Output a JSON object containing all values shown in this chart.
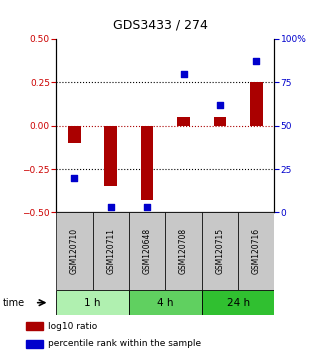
{
  "title": "GDS3433 / 274",
  "samples": [
    "GSM120710",
    "GSM120711",
    "GSM120648",
    "GSM120708",
    "GSM120715",
    "GSM120716"
  ],
  "log10_ratio": [
    -0.1,
    -0.35,
    -0.43,
    0.05,
    0.05,
    0.25
  ],
  "percentile_rank": [
    20,
    3,
    3,
    80,
    62,
    87
  ],
  "time_groups": [
    {
      "label": "1 h",
      "samples": [
        0,
        1
      ],
      "color": "#b0f0b0"
    },
    {
      "label": "4 h",
      "samples": [
        2,
        3
      ],
      "color": "#60d060"
    },
    {
      "label": "24 h",
      "samples": [
        4,
        5
      ],
      "color": "#30c030"
    }
  ],
  "bar_color": "#aa0000",
  "dot_color": "#0000cc",
  "ylim_left": [
    -0.5,
    0.5
  ],
  "ylim_right": [
    0,
    100
  ],
  "yticks_left": [
    -0.5,
    -0.25,
    0,
    0.25,
    0.5
  ],
  "yticks_right": [
    0,
    25,
    50,
    75,
    100
  ],
  "hlines": [
    -0.25,
    0.25
  ],
  "left_axis_color": "#cc0000",
  "right_axis_color": "#0000cc",
  "bar_width": 0.35,
  "dot_size": 18,
  "legend_log10": "log10 ratio",
  "legend_pct": "percentile rank within the sample",
  "sample_bg": "#c8c8c8",
  "plot_bg": "#ffffff"
}
